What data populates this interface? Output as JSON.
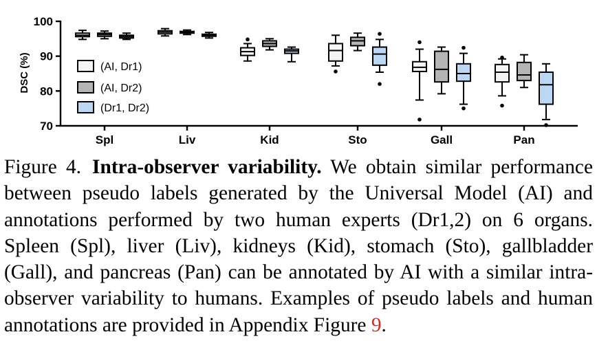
{
  "chart_data": {
    "type": "box",
    "ylabel": "DSC (%)",
    "ylim": [
      70,
      100
    ],
    "yticks": [
      "70",
      "80",
      "90",
      "100"
    ],
    "categories": [
      "Spl",
      "Liv",
      "Kid",
      "Sto",
      "Gall",
      "Pan"
    ],
    "legend": {
      "position": "left",
      "entries": [
        "(AI, Dr1)",
        "(AI, Dr2)",
        "(Dr1, Dr2)"
      ]
    },
    "series": [
      {
        "name": "(AI, Dr1)",
        "color": "#f4f4f4",
        "boxes": [
          {
            "whislo": 94.8,
            "q1": 95.6,
            "med": 96.0,
            "q3": 96.6,
            "whishi": 97.4,
            "fliers": []
          },
          {
            "whislo": 95.8,
            "q1": 96.4,
            "med": 96.9,
            "q3": 97.3,
            "whishi": 97.9,
            "fliers": []
          },
          {
            "whislo": 88.6,
            "q1": 90.2,
            "med": 91.3,
            "q3": 92.4,
            "whishi": 93.6,
            "fliers": [
              94.8
            ]
          },
          {
            "whislo": 87.2,
            "q1": 88.6,
            "med": 91.6,
            "q3": 93.6,
            "whishi": 96.0,
            "fliers": [
              85.6
            ]
          },
          {
            "whislo": 77.4,
            "q1": 85.6,
            "med": 86.8,
            "q3": 88.4,
            "whishi": 92.0,
            "fliers": [
              71.8,
              94.0
            ]
          },
          {
            "whislo": 78.6,
            "q1": 82.6,
            "med": 85.4,
            "q3": 87.6,
            "whishi": 89.2,
            "fliers": [
              75.8,
              89.6
            ]
          }
        ]
      },
      {
        "name": "(AI, Dr2)",
        "color": "#b4b4b4",
        "boxes": [
          {
            "whislo": 95.0,
            "q1": 95.7,
            "med": 96.2,
            "q3": 96.6,
            "whishi": 97.2,
            "fliers": []
          },
          {
            "whislo": 96.2,
            "q1": 96.6,
            "med": 96.9,
            "q3": 97.1,
            "whishi": 97.5,
            "fliers": []
          },
          {
            "whislo": 91.8,
            "q1": 92.8,
            "med": 93.6,
            "q3": 94.4,
            "whishi": 95.0,
            "fliers": []
          },
          {
            "whislo": 91.6,
            "q1": 93.0,
            "med": 94.4,
            "q3": 95.4,
            "whishi": 96.6,
            "fliers": []
          },
          {
            "whislo": 79.2,
            "q1": 82.6,
            "med": 86.2,
            "q3": 91.4,
            "whishi": 92.6,
            "fliers": []
          },
          {
            "whislo": 81.0,
            "q1": 83.0,
            "med": 84.6,
            "q3": 88.2,
            "whishi": 90.4,
            "fliers": []
          }
        ]
      },
      {
        "name": "(Dr1, Dr2)",
        "color": "#bcd7f4",
        "boxes": [
          {
            "whislo": 94.8,
            "q1": 95.2,
            "med": 95.6,
            "q3": 96.0,
            "whishi": 96.6,
            "fliers": []
          },
          {
            "whislo": 95.2,
            "q1": 95.7,
            "med": 96.0,
            "q3": 96.3,
            "whishi": 96.8,
            "fliers": []
          },
          {
            "whislo": 88.4,
            "q1": 90.8,
            "med": 91.5,
            "q3": 92.0,
            "whishi": 92.6,
            "fliers": []
          },
          {
            "whislo": 85.4,
            "q1": 87.4,
            "med": 90.6,
            "q3": 92.6,
            "whishi": 94.8,
            "fliers": [
              82.0,
              96.4
            ]
          },
          {
            "whislo": 76.2,
            "q1": 82.8,
            "med": 85.0,
            "q3": 87.8,
            "whishi": 90.8,
            "fliers": [
              75.0,
              92.4
            ]
          },
          {
            "whislo": 71.8,
            "q1": 76.2,
            "med": 81.8,
            "q3": 85.4,
            "whishi": 87.8,
            "fliers": [
              70.2
            ]
          }
        ]
      }
    ]
  },
  "caption": {
    "label": "Figure 4.",
    "title": "Intra-observer variability.",
    "body": "We obtain similar performance between pseudo labels generated by the Universal Model (AI) and annotations performed by two human experts (Dr1,2) on 6 organs. Spleen (Spl), liver (Liv), kidneys (Kid), stomach (Sto), gallbladder (Gall), and pancreas (Pan) can be annotated by AI with a similar intra-observer variability to humans. Examples of pseudo labels and human annotations are provided in Appendix Figure",
    "ref": "9",
    "end": "."
  }
}
